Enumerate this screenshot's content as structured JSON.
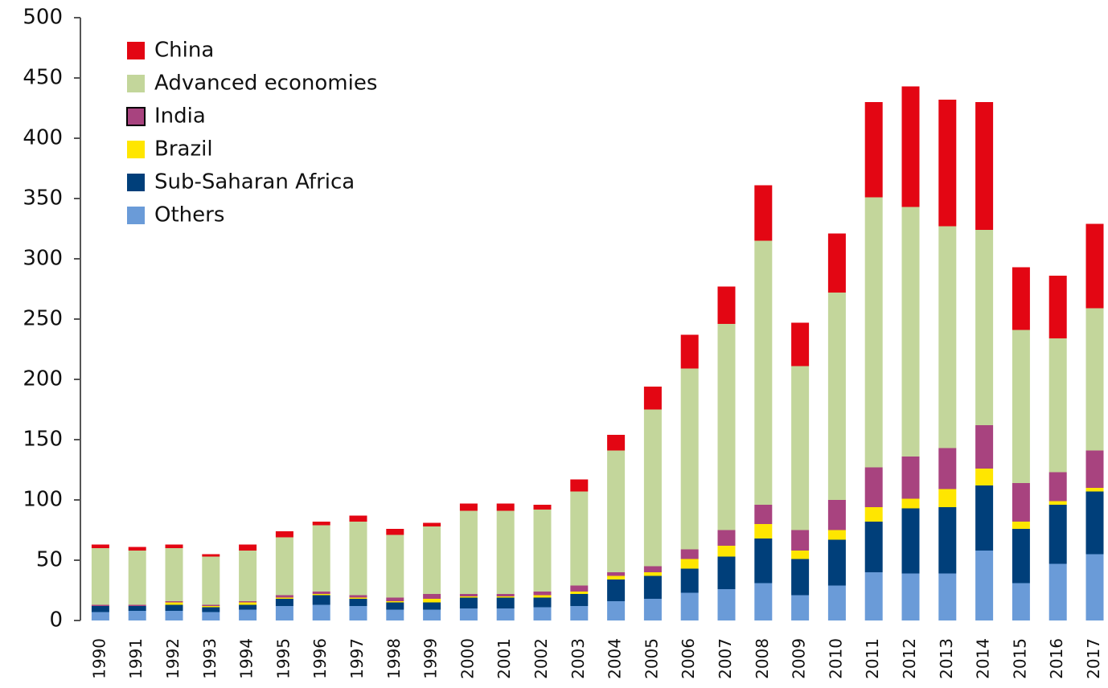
{
  "chart_data": {
    "type": "stacked_bar",
    "categories": [
      "1990",
      "1991",
      "1992",
      "1993",
      "1994",
      "1995",
      "1996",
      "1997",
      "1998",
      "1999",
      "2000",
      "2001",
      "2002",
      "2003",
      "2004",
      "2005",
      "2006",
      "2007",
      "2008",
      "2009",
      "2010",
      "2011",
      "2012",
      "2013",
      "2014",
      "2015",
      "2016",
      "2017"
    ],
    "series": [
      {
        "name": "Others",
        "color": "#6a9bd8",
        "values": [
          7,
          8,
          8,
          7,
          9,
          12,
          13,
          12,
          9,
          9,
          10,
          10,
          11,
          12,
          16,
          18,
          23,
          26,
          31,
          21,
          29,
          40,
          39,
          39,
          58,
          31,
          47,
          55
        ]
      },
      {
        "name": "Sub-Saharan Africa",
        "color": "#003f7a",
        "values": [
          5,
          4,
          5,
          4,
          4,
          6,
          8,
          6,
          6,
          6,
          9,
          9,
          8,
          10,
          18,
          19,
          20,
          27,
          37,
          30,
          38,
          42,
          54,
          55,
          54,
          45,
          49,
          52
        ]
      },
      {
        "name": "Brazil",
        "color": "#ffe600",
        "values": [
          0,
          0,
          2,
          1,
          2,
          1,
          1,
          1,
          1,
          3,
          1,
          1,
          2,
          2,
          3,
          3,
          8,
          9,
          12,
          7,
          8,
          12,
          8,
          15,
          14,
          6,
          3,
          3
        ]
      },
      {
        "name": "India",
        "color": "#a8437f",
        "values": [
          1,
          1,
          1,
          1,
          1,
          2,
          2,
          2,
          3,
          4,
          2,
          2,
          3,
          5,
          3,
          5,
          8,
          13,
          16,
          17,
          25,
          33,
          35,
          34,
          36,
          32,
          24,
          31
        ]
      },
      {
        "name": "Advanced economies",
        "color": "#c3d69b",
        "values": [
          47,
          45,
          44,
          40,
          42,
          48,
          55,
          61,
          52,
          56,
          69,
          69,
          68,
          78,
          101,
          130,
          150,
          171,
          219,
          136,
          172,
          224,
          207,
          184,
          162,
          127,
          111,
          118
        ]
      },
      {
        "name": "China",
        "color": "#e30613",
        "values": [
          3,
          3,
          3,
          2,
          5,
          5,
          3,
          5,
          5,
          3,
          6,
          6,
          4,
          10,
          13,
          19,
          28,
          31,
          46,
          36,
          49,
          79,
          100,
          105,
          106,
          52,
          52,
          70
        ]
      }
    ],
    "ylim": [
      0,
      500
    ],
    "yticks": [
      0,
      50,
      100,
      150,
      200,
      250,
      300,
      350,
      400,
      450,
      500
    ]
  }
}
